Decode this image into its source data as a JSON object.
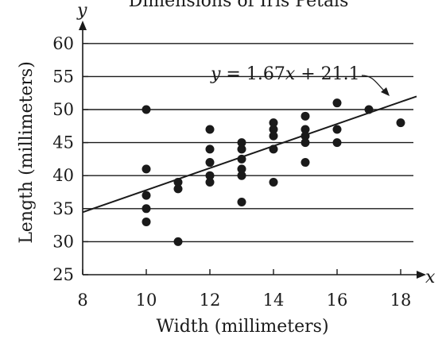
{
  "chart_data": {
    "type": "scatter",
    "title": "Dimensions of Iris Petals",
    "xlabel": "Width (millimeters)",
    "ylabel": "Length (millimeters)",
    "x_axis_letter": "x",
    "y_axis_letter": "y",
    "xlim": [
      8,
      18.5
    ],
    "ylim": [
      25,
      61
    ],
    "x_ticks": [
      8,
      10,
      12,
      14,
      16,
      18
    ],
    "y_ticks": [
      25,
      30,
      35,
      40,
      45,
      50,
      55,
      60
    ],
    "grid": "horizontal",
    "points": [
      [
        10,
        50
      ],
      [
        10,
        41
      ],
      [
        10,
        37
      ],
      [
        10,
        35
      ],
      [
        10,
        33
      ],
      [
        11,
        39
      ],
      [
        11,
        38
      ],
      [
        11,
        30
      ],
      [
        12,
        47
      ],
      [
        12,
        44
      ],
      [
        12,
        42
      ],
      [
        12,
        40
      ],
      [
        12,
        39
      ],
      [
        13,
        45
      ],
      [
        13,
        44
      ],
      [
        13,
        42.5
      ],
      [
        13,
        41
      ],
      [
        13,
        40
      ],
      [
        13,
        36
      ],
      [
        14,
        48
      ],
      [
        14,
        47
      ],
      [
        14,
        46
      ],
      [
        14,
        44
      ],
      [
        14,
        39
      ],
      [
        15,
        49
      ],
      [
        15,
        47
      ],
      [
        15,
        46
      ],
      [
        15,
        45
      ],
      [
        15,
        42
      ],
      [
        16,
        51
      ],
      [
        16,
        47
      ],
      [
        16,
        45
      ],
      [
        17,
        50
      ],
      [
        18,
        48
      ]
    ],
    "regression_line": {
      "slope": 1.67,
      "intercept": 21.1,
      "x_range": [
        8,
        18.5
      ],
      "equation_parts": [
        "y",
        " = 1.67",
        "x",
        " + 21.1"
      ]
    }
  }
}
